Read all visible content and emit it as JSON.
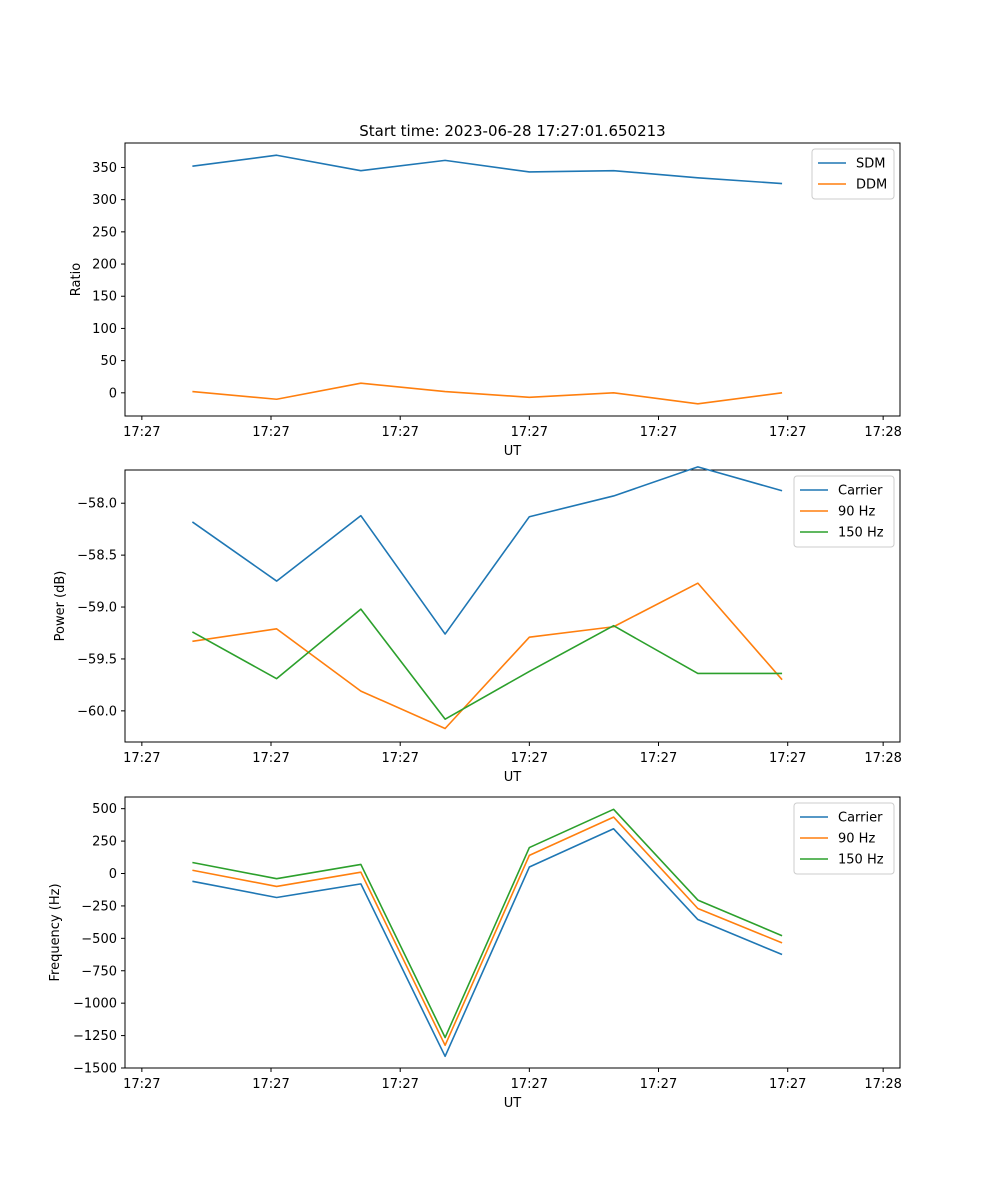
{
  "chart_data": [
    {
      "type": "line",
      "title": "Start time: 2023-06-28 17:27:01.650213",
      "xlabel": "UT",
      "ylabel": "Ratio",
      "x_tick_labels": [
        "17:27",
        "17:27",
        "17:27",
        "17:27",
        "17:27",
        "17:27",
        "17:28"
      ],
      "x": [
        1,
        2,
        3,
        4,
        5,
        6,
        7,
        8
      ],
      "xlim": [
        0.2,
        9.4
      ],
      "ylim": [
        -36,
        388
      ],
      "yticks": [
        0,
        50,
        100,
        150,
        200,
        250,
        300,
        350
      ],
      "legend": "top-right",
      "series": [
        {
          "name": "SDM",
          "color": "#1f77b4",
          "values": [
            352,
            369,
            345,
            361,
            343,
            345,
            334,
            325
          ]
        },
        {
          "name": "DDM",
          "color": "#ff7f0e",
          "values": [
            2,
            -10,
            15,
            2,
            -7,
            0,
            -17,
            0
          ]
        }
      ]
    },
    {
      "type": "line",
      "title": "",
      "xlabel": "UT",
      "ylabel": "Power (dB)",
      "x_tick_labels": [
        "17:27",
        "17:27",
        "17:27",
        "17:27",
        "17:27",
        "17:27",
        "17:28"
      ],
      "x": [
        1,
        2,
        3,
        4,
        5,
        6,
        7,
        8
      ],
      "xlim": [
        0.2,
        9.4
      ],
      "ylim": [
        -60.3,
        -57.68
      ],
      "yticks": [
        -60.0,
        -59.5,
        -59.0,
        -58.5,
        -58.0
      ],
      "ytick_labels": [
        "−60.0",
        "−59.5",
        "−59.0",
        "−58.5",
        "−58.0"
      ],
      "legend": "top-right",
      "series": [
        {
          "name": "Carrier",
          "color": "#1f77b4",
          "values": [
            -58.18,
            -58.75,
            -58.12,
            -59.26,
            -58.13,
            -57.93,
            -57.65,
            -57.88
          ]
        },
        {
          "name": "90 Hz",
          "color": "#ff7f0e",
          "values": [
            -59.33,
            -59.21,
            -59.81,
            -60.17,
            -59.29,
            -59.19,
            -58.77,
            -59.7
          ]
        },
        {
          "name": "150 Hz",
          "color": "#2ca02c",
          "values": [
            -59.24,
            -59.69,
            -59.02,
            -60.08,
            -59.62,
            -59.18,
            -59.64,
            -59.64
          ]
        }
      ]
    },
    {
      "type": "line",
      "title": "",
      "xlabel": "UT",
      "ylabel": "Frequency (Hz)",
      "x_tick_labels": [
        "17:27",
        "17:27",
        "17:27",
        "17:27",
        "17:27",
        "17:27",
        "17:28"
      ],
      "x": [
        1,
        2,
        3,
        4,
        5,
        6,
        7,
        8
      ],
      "xlim": [
        0.2,
        9.4
      ],
      "ylim": [
        -1500,
        590
      ],
      "yticks": [
        -1500,
        -1250,
        -1000,
        -750,
        -500,
        -250,
        0,
        250,
        500
      ],
      "ytick_labels": [
        "−1500",
        "−1250",
        "−1000",
        "−750",
        "−500",
        "−250",
        "0",
        "250",
        "500"
      ],
      "legend": "top-right",
      "series": [
        {
          "name": "Carrier",
          "color": "#1f77b4",
          "values": [
            -60,
            -185,
            -80,
            -1410,
            50,
            345,
            -355,
            -625
          ]
        },
        {
          "name": "90 Hz",
          "color": "#ff7f0e",
          "values": [
            25,
            -100,
            10,
            -1325,
            140,
            435,
            -270,
            -535
          ]
        },
        {
          "name": "150 Hz",
          "color": "#2ca02c",
          "values": [
            85,
            -40,
            70,
            -1265,
            200,
            495,
            -205,
            -480
          ]
        }
      ]
    }
  ]
}
